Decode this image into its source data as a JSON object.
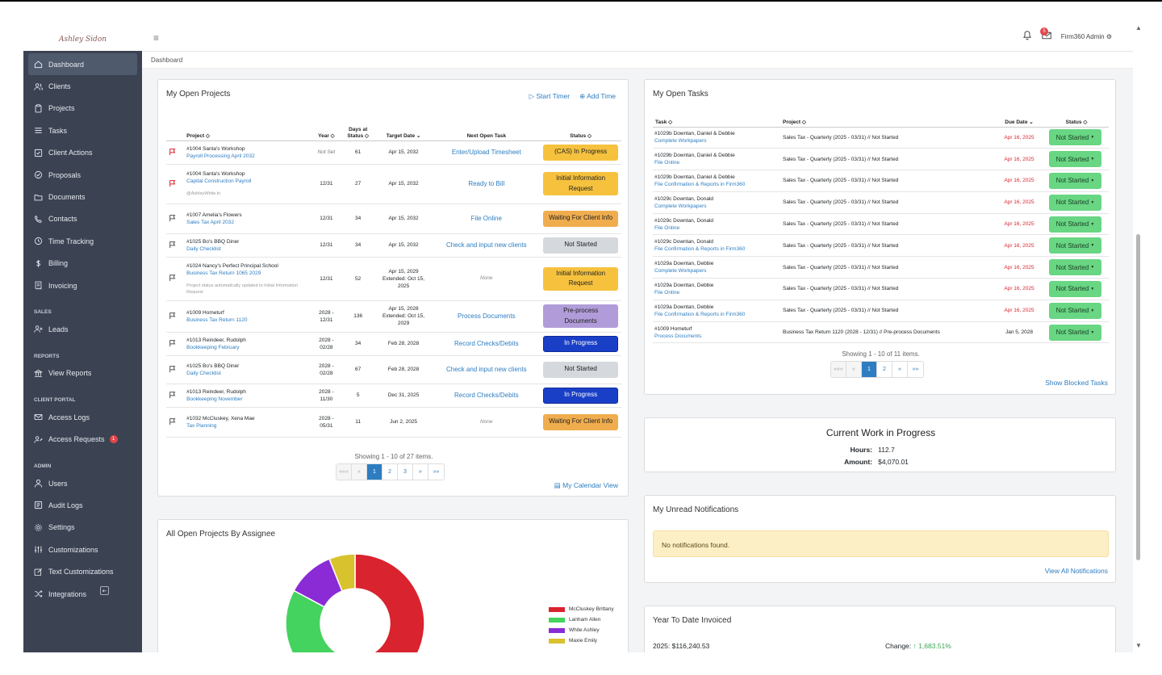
{
  "app": {
    "logo_text": "Ashley Sidon",
    "user": "Firm360 Admin",
    "mail_count": "5"
  },
  "breadcrumb": "Dashboard",
  "sidebar": {
    "items": [
      {
        "label": "Dashboard"
      },
      {
        "label": "Clients"
      },
      {
        "label": "Projects"
      },
      {
        "label": "Tasks"
      },
      {
        "label": "Client Actions"
      },
      {
        "label": "Proposals"
      },
      {
        "label": "Documents"
      },
      {
        "label": "Contacts"
      },
      {
        "label": "Time Tracking"
      },
      {
        "label": "Billing"
      },
      {
        "label": "Invoicing"
      }
    ],
    "sales_title": "SALES",
    "sales_items": [
      {
        "label": "Leads"
      }
    ],
    "reports_title": "REPORTS",
    "reports_items": [
      {
        "label": "View Reports"
      }
    ],
    "portal_title": "CLIENT PORTAL",
    "portal_items": [
      {
        "label": "Access Logs"
      },
      {
        "label": "Access Requests",
        "badge": "1"
      }
    ],
    "admin_title": "ADMIN",
    "admin_items": [
      {
        "label": "Users"
      },
      {
        "label": "Audit Logs"
      },
      {
        "label": "Settings"
      },
      {
        "label": "Customizations"
      },
      {
        "label": "Text Customizations"
      },
      {
        "label": "Integrations"
      }
    ]
  },
  "projects": {
    "title": "My Open Projects",
    "start_timer": "Start Timer",
    "add_time": "Add Time",
    "headers": {
      "project": "Project",
      "year": "Year",
      "days": "Days at Status",
      "target": "Target Date",
      "next": "Next Open Task",
      "status": "Status"
    },
    "rows": [
      {
        "client": "#1004 Santa's Workshop",
        "project": "Payroll Processing April 2032",
        "note": "",
        "year": "Not Set",
        "days": "61",
        "target": "Apr 15, 2032",
        "next": "Enter/Upload Timesheet",
        "status": "(CAS) In Progress",
        "flag": "red",
        "status_color": "#f6c23e",
        "status_text": "#222"
      },
      {
        "client": "#1004 Santa's Workshop",
        "project": "Capital Construction Payroll",
        "note": "@AshleyWhite.ln",
        "year": "12/31",
        "days": "27",
        "target": "Apr 15, 2032",
        "next": "Ready to Bill",
        "status": "Initial Information Request",
        "flag": "red",
        "status_color": "#f6c23e",
        "status_text": "#222"
      },
      {
        "client": "#1007 Amelia's Flowers",
        "project": "Sales Tax April 2032",
        "note": "",
        "year": "12/31",
        "days": "34",
        "target": "Apr 15, 2032",
        "next": "File Online",
        "status": "Waiting For Client Info",
        "flag": "grey",
        "status_color": "#f0ad4e",
        "status_text": "#222"
      },
      {
        "client": "#1025 Bo's BBQ Diner",
        "project": "Daily Checklist",
        "note": "",
        "year": "12/31",
        "days": "34",
        "target": "Apr 15, 2032",
        "next": "Check and input new clients",
        "status": "Not Started",
        "flag": "grey",
        "status_color": "#d5d8dc",
        "status_text": "#222"
      },
      {
        "client": "#1024 Nancy's Perfect Principal School",
        "project": "Business Tax Return 1065 2029",
        "note": "Project status automatically updated to Initial Information Request",
        "year": "12/31",
        "days": "52",
        "target": "Apr 15, 2029 Extended: Oct 15, 2025",
        "next": "None",
        "status": "Initial Information Request",
        "flag": "grey",
        "status_color": "#f6c23e",
        "status_text": "#222"
      },
      {
        "client": "#1009 Hometurf",
        "project": "Business Tax Return 1120",
        "note": "",
        "year": "2028 - 12/31",
        "days": "136",
        "target": "Apr 15, 2028 Extended: Oct 15, 2029",
        "next": "Process Documents",
        "status": "Pre-process Documents",
        "flag": "grey",
        "status_color": "#b19cd9",
        "status_text": "#222"
      },
      {
        "client": "#1013 Reindeer, Rudolph",
        "project": "Bookkeeping February",
        "note": "",
        "year": "2028 - 02/28",
        "days": "34",
        "target": "Feb 28, 2028",
        "next": "Record Checks/Debits",
        "status": "In Progress",
        "flag": "grey",
        "status_color": "#1a3fc7",
        "status_text": "#fff"
      },
      {
        "client": "#1025 Bo's BBQ Diner",
        "project": "Daily Checklist",
        "note": "",
        "year": "2028 - 02/28",
        "days": "67",
        "target": "Feb 28, 2028",
        "next": "Check and input new clients",
        "status": "Not Started",
        "flag": "grey",
        "status_color": "#d5d8dc",
        "status_text": "#222"
      },
      {
        "client": "#1013 Reindeer, Rudolph",
        "project": "Bookkeeping November",
        "note": "",
        "year": "2028 - 11/30",
        "days": "5",
        "target": "Dec 31, 2025",
        "next": "Record Checks/Debits",
        "status": "In Progress",
        "flag": "grey",
        "status_color": "#1a3fc7",
        "status_text": "#fff"
      },
      {
        "client": "#1032 McCluskey, Xena Mae",
        "project": "Tax Planning",
        "note": "",
        "year": "2028 - 05/31",
        "days": "11",
        "target": "Jun 2, 2025",
        "next": "None",
        "status": "Waiting For Client Info",
        "flag": "grey",
        "status_color": "#f0ad4e",
        "status_text": "#222"
      }
    ],
    "showing": "Showing 1 - 10 of 27 items.",
    "pages": [
      "«««",
      "«",
      "1",
      "2",
      "3",
      "»",
      "»»"
    ],
    "calendar": "My Calendar View"
  },
  "tasks": {
    "title": "My Open Tasks",
    "headers": {
      "task": "Task",
      "project": "Project",
      "due": "Due Date",
      "status": "Status"
    },
    "rows": [
      {
        "client": "#1029b Downtan, Daniel & Debbie",
        "task": "Complete Workpapers",
        "project": "Sales Tax - Quarterly (2025 - 03/31) // Not Started",
        "due": "Apr 16, 2025",
        "overdue": true,
        "status": "Not Started"
      },
      {
        "client": "#1029b Downtan, Daniel & Debbie",
        "task": "File Online",
        "project": "Sales Tax - Quarterly (2025 - 03/31) // Not Started",
        "due": "Apr 16, 2025",
        "overdue": true,
        "status": "Not Started"
      },
      {
        "client": "#1029b Downtan, Daniel & Debbie",
        "task": "File Confirmation & Reports in Firm360",
        "project": "Sales Tax - Quarterly (2025 - 03/31) // Not Started",
        "due": "Apr 16, 2025",
        "overdue": true,
        "status": "Not Started"
      },
      {
        "client": "#1029c Downtan, Donald",
        "task": "Complete Workpapers",
        "project": "Sales Tax - Quarterly (2025 - 03/31) // Not Started",
        "due": "Apr 16, 2025",
        "overdue": true,
        "status": "Not Started"
      },
      {
        "client": "#1029c Downtan, Donald",
        "task": "File Online",
        "project": "Sales Tax - Quarterly (2025 - 03/31) // Not Started",
        "due": "Apr 16, 2025",
        "overdue": true,
        "status": "Not Started"
      },
      {
        "client": "#1029c Downtan, Donald",
        "task": "File Confirmation & Reports in Firm360",
        "project": "Sales Tax - Quarterly (2025 - 03/31) // Not Started",
        "due": "Apr 16, 2025",
        "overdue": true,
        "status": "Not Started"
      },
      {
        "client": "#1029a Downtan, Debbie",
        "task": "Complete Workpapers",
        "project": "Sales Tax - Quarterly (2025 - 03/31) // Not Started",
        "due": "Apr 16, 2025",
        "overdue": true,
        "status": "Not Started"
      },
      {
        "client": "#1029a Downtan, Debbie",
        "task": "File Online",
        "project": "Sales Tax - Quarterly (2025 - 03/31) // Not Started",
        "due": "Apr 16, 2025",
        "overdue": true,
        "status": "Not Started"
      },
      {
        "client": "#1029a Downtan, Debbie",
        "task": "File Confirmation & Reports in Firm360",
        "project": "Sales Tax - Quarterly (2025 - 03/31) // Not Started",
        "due": "Apr 16, 2025",
        "overdue": true,
        "status": "Not Started"
      },
      {
        "client": "#1009 Hometurf",
        "task": "Process Documents",
        "project": "Business Tax Return 1120 (2028 - 12/31) // Pre-process Documents",
        "due": "Jan 5, 2028",
        "overdue": false,
        "status": "Not Started"
      }
    ],
    "showing": "Showing 1 - 10 of 11 items.",
    "pages": [
      "«««",
      "«",
      "1",
      "2",
      "»",
      "»»"
    ],
    "blocked": "Show Blocked Tasks"
  },
  "wip": {
    "title": "Current Work in Progress",
    "hours_label": "Hours:",
    "hours": "112.7",
    "amount_label": "Amount:",
    "amount": "$4,070.01"
  },
  "notifications": {
    "title": "My Unread Notifications",
    "empty": "No notifications found.",
    "view_all": "View All Notifications"
  },
  "ytd": {
    "title": "Year To Date Invoiced",
    "invoiced": "2025: $116,240.53",
    "change_label": "Change:",
    "change": "1,683.51%"
  },
  "assignee": {
    "title": "All Open Projects By Assignee"
  },
  "chart_data": {
    "type": "pie",
    "series": [
      {
        "name": "McCluskey Brittany",
        "value": 52,
        "color": "#d9232e"
      },
      {
        "name": "Lanham Allen",
        "value": 30,
        "color": "#44d35e"
      },
      {
        "name": "White Ashley",
        "value": 11,
        "color": "#8a2bd6"
      },
      {
        "name": "Maxie Emily",
        "value": 6,
        "color": "#d8c22e"
      }
    ]
  }
}
